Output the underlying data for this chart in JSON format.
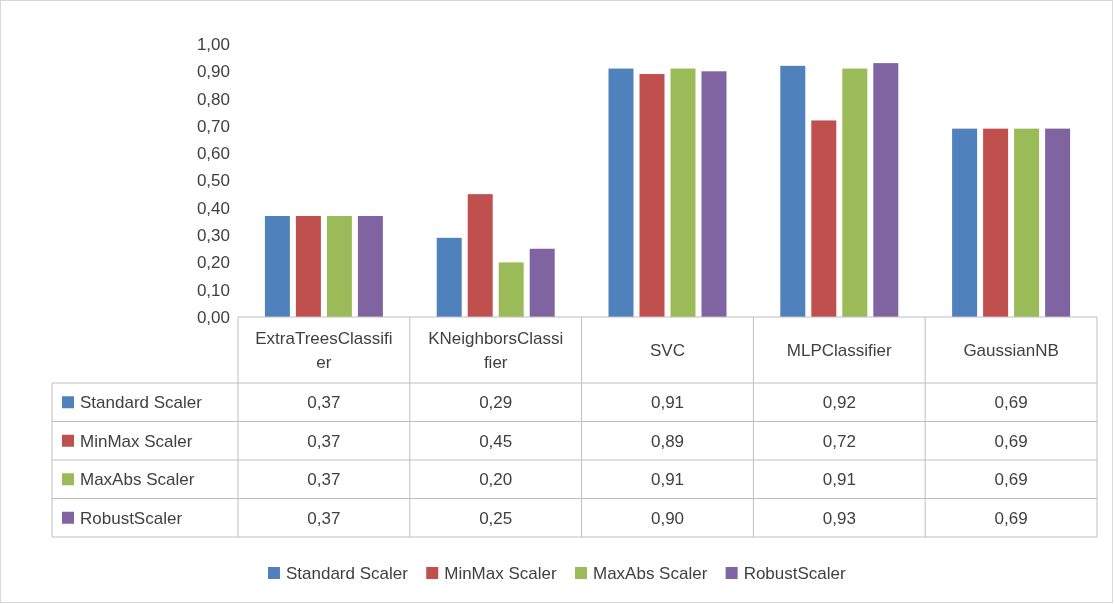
{
  "chart_data": {
    "type": "bar",
    "categories": [
      "ExtraTreesClassifier",
      "KNeighborsClassifier",
      "SVC",
      "MLPClassifier",
      "GaussianNB"
    ],
    "series": [
      {
        "name": "Standard Scaler",
        "color": "#4f81bd",
        "values": [
          0.37,
          0.29,
          0.91,
          0.92,
          0.69
        ],
        "value_labels": [
          "0,37",
          "0,29",
          "0,91",
          "0,92",
          "0,69"
        ]
      },
      {
        "name": "MinMax Scaler",
        "color": "#c0504d",
        "values": [
          0.37,
          0.45,
          0.89,
          0.72,
          0.69
        ],
        "value_labels": [
          "0,37",
          "0,45",
          "0,89",
          "0,72",
          "0,69"
        ]
      },
      {
        "name": "MaxAbs Scaler",
        "color": "#9bbb59",
        "values": [
          0.37,
          0.2,
          0.91,
          0.91,
          0.69
        ],
        "value_labels": [
          "0,37",
          "0,20",
          "0,91",
          "0,91",
          "0,69"
        ]
      },
      {
        "name": "RobustScaler",
        "color": "#8064a2",
        "values": [
          0.37,
          0.25,
          0.9,
          0.93,
          0.69
        ],
        "value_labels": [
          "0,37",
          "0,25",
          "0,90",
          "0,93",
          "0,69"
        ]
      }
    ],
    "ylim": [
      0,
      1
    ],
    "yticks": [
      {
        "value": 0,
        "label": "0,00"
      },
      {
        "value": 0.1,
        "label": "0,10"
      },
      {
        "value": 0.2,
        "label": "0,20"
      },
      {
        "value": 0.3,
        "label": "0,30"
      },
      {
        "value": 0.4,
        "label": "0,40"
      },
      {
        "value": 0.5,
        "label": "0,50"
      },
      {
        "value": 0.6,
        "label": "0,60"
      },
      {
        "value": 0.7,
        "label": "0,70"
      },
      {
        "value": 0.8,
        "label": "0,80"
      },
      {
        "value": 0.9,
        "label": "0,90"
      },
      {
        "value": 1,
        "label": "1,00"
      }
    ],
    "grid": false,
    "legend": "bottom"
  }
}
